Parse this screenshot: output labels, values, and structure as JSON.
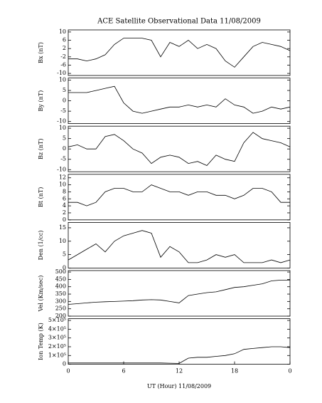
{
  "chart_data": [
    {
      "type": "line",
      "title": "ACE Satellite Observational Data   11/08/2009",
      "ylabel": "Bx (nT)",
      "ylim": [
        -11,
        11
      ],
      "yticks": [
        -10,
        -6,
        -2,
        2,
        6,
        10
      ],
      "xlim": [
        0,
        24
      ],
      "x": [
        0,
        1,
        2,
        3,
        4,
        5,
        6,
        7,
        8,
        9,
        10,
        11,
        12,
        13,
        14,
        15,
        16,
        17,
        18,
        19,
        20,
        21,
        22,
        23,
        24
      ],
      "series": [
        {
          "color": "#000000",
          "values": [
            -3,
            -3,
            -4,
            -3,
            -1,
            4,
            7,
            7,
            7,
            6,
            -2,
            5,
            3,
            6,
            2,
            4,
            2,
            -4,
            -7,
            -2,
            3,
            5,
            4,
            3,
            1
          ]
        }
      ]
    },
    {
      "type": "line",
      "ylabel": "By (nT)",
      "ylim": [
        -11,
        11
      ],
      "yticks": [
        -10,
        -5,
        0,
        5,
        10
      ],
      "xlim": [
        0,
        24
      ],
      "x": [
        0,
        1,
        2,
        3,
        4,
        5,
        6,
        7,
        8,
        9,
        10,
        11,
        12,
        13,
        14,
        15,
        16,
        17,
        18,
        19,
        20,
        21,
        22,
        23,
        24
      ],
      "series": [
        {
          "color": "#000000",
          "values": [
            4,
            4,
            4,
            5,
            6,
            7,
            -1,
            -5,
            -6,
            -5,
            -4,
            -3,
            -3,
            -2,
            -3,
            -2,
            -3,
            1,
            -2,
            -3,
            -6,
            -5,
            -3,
            -4,
            -3
          ]
        }
      ]
    },
    {
      "type": "line",
      "ylabel": "Bz (nT)",
      "ylim": [
        -11,
        11
      ],
      "yticks": [
        -10,
        -5,
        0,
        5,
        10
      ],
      "xlim": [
        0,
        24
      ],
      "x": [
        0,
        1,
        2,
        3,
        4,
        5,
        6,
        7,
        8,
        9,
        10,
        11,
        12,
        13,
        14,
        15,
        16,
        17,
        18,
        19,
        20,
        21,
        22,
        23,
        24
      ],
      "series": [
        {
          "color": "#000000",
          "values": [
            1,
            2,
            0,
            0,
            6,
            7,
            4,
            0,
            -2,
            -7,
            -4,
            -3,
            -4,
            -7,
            -6,
            -8,
            -3,
            -5,
            -6,
            3,
            8,
            5,
            4,
            3,
            1
          ]
        }
      ]
    },
    {
      "type": "line",
      "ylabel": "Bt (nT)",
      "ylim": [
        0,
        13
      ],
      "yticks": [
        0,
        2,
        4,
        6,
        8,
        10,
        12
      ],
      "xlim": [
        0,
        24
      ],
      "x": [
        0,
        1,
        2,
        3,
        4,
        5,
        6,
        7,
        8,
        9,
        10,
        11,
        12,
        13,
        14,
        15,
        16,
        17,
        18,
        19,
        20,
        21,
        22,
        23,
        24
      ],
      "series": [
        {
          "color": "#000000",
          "values": [
            5,
            5,
            4,
            5,
            8,
            9,
            9,
            8,
            8,
            10,
            9,
            8,
            8,
            7,
            8,
            8,
            7,
            7,
            6,
            7,
            9,
            9,
            8,
            5,
            5
          ]
        }
      ]
    },
    {
      "type": "line",
      "ylabel": "Den (1/cc)",
      "ylim": [
        0,
        17
      ],
      "yticks": [
        0,
        5,
        10,
        15
      ],
      "xlim": [
        0,
        24
      ],
      "x": [
        0,
        1,
        2,
        3,
        4,
        5,
        6,
        7,
        8,
        9,
        10,
        11,
        12,
        13,
        14,
        15,
        16,
        17,
        18,
        19,
        20,
        21,
        22,
        23,
        24
      ],
      "series": [
        {
          "color": "#000000",
          "values": [
            3,
            5,
            7,
            9,
            6,
            10,
            12,
            13,
            14,
            13,
            4,
            8,
            6,
            2,
            2,
            3,
            5,
            4,
            5,
            2,
            2,
            2,
            3,
            2,
            3
          ]
        }
      ]
    },
    {
      "type": "line",
      "ylabel": "Vel (Km/sec)",
      "ylim": [
        200,
        510
      ],
      "yticks": [
        200,
        250,
        300,
        350,
        400,
        450,
        500
      ],
      "xlim": [
        0,
        24
      ],
      "x": [
        0,
        1,
        2,
        3,
        4,
        5,
        6,
        7,
        8,
        9,
        10,
        11,
        12,
        13,
        14,
        15,
        16,
        17,
        18,
        19,
        20,
        21,
        22,
        23,
        24
      ],
      "series": [
        {
          "color": "#000000",
          "values": [
            280,
            285,
            290,
            295,
            298,
            300,
            302,
            305,
            310,
            312,
            310,
            300,
            290,
            340,
            350,
            360,
            365,
            380,
            395,
            400,
            410,
            420,
            440,
            445,
            445
          ]
        }
      ]
    },
    {
      "type": "line",
      "ylabel": "Ion Temp (K)",
      "ylim": [
        0,
        520000
      ],
      "xlim": [
        0,
        24
      ],
      "xlabel": "UT (Hour)   11/08/2009",
      "yticks": [
        0,
        {
          "value": 100000,
          "label": "1×10⁵"
        },
        {
          "value": 200000,
          "label": "2×10⁵"
        },
        {
          "value": 300000,
          "label": "3×10⁵"
        },
        {
          "value": 400000,
          "label": "4×10⁵"
        },
        {
          "value": 500000,
          "label": "5×10⁵"
        }
      ],
      "xticks": [
        0,
        6,
        12,
        18,
        {
          "value": 24,
          "label": "0"
        }
      ],
      "x": [
        0,
        1,
        2,
        3,
        4,
        5,
        6,
        7,
        8,
        9,
        10,
        11,
        12,
        13,
        14,
        15,
        16,
        17,
        18,
        19,
        20,
        21,
        22,
        23,
        24
      ],
      "series": [
        {
          "color": "#000000",
          "values": [
            15000,
            15000,
            15000,
            15000,
            15000,
            15000,
            15000,
            15000,
            15000,
            15000,
            15000,
            12000,
            10000,
            70000,
            80000,
            80000,
            90000,
            100000,
            120000,
            170000,
            180000,
            190000,
            200000,
            200000,
            190000
          ]
        }
      ]
    }
  ]
}
